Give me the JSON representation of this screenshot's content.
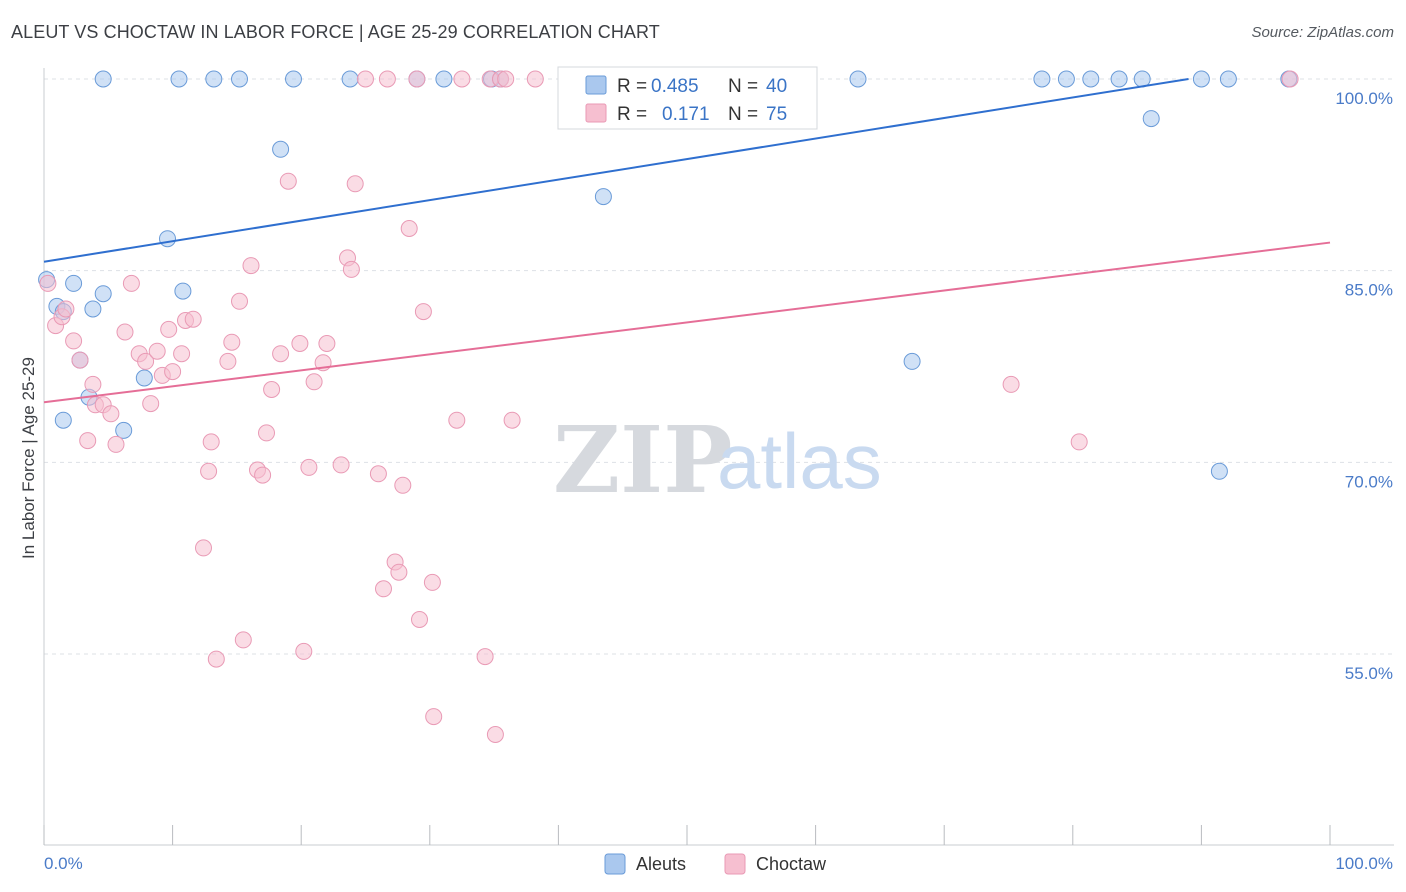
{
  "title": "ALEUT VS CHOCTAW IN LABOR FORCE | AGE 25-29 CORRELATION CHART",
  "source": "Source: ZipAtlas.com",
  "watermark": {
    "part1": "ZIP",
    "part2": "atlas"
  },
  "colors": {
    "aleut_fill": "#aac8ee",
    "aleut_stroke": "#6a9bd8",
    "aleut_line": "#2f6fcf",
    "choctaw_fill": "#f6bfd0",
    "choctaw_stroke": "#e99ab5",
    "choctaw_line": "#e56e97",
    "tick_label": "#4a7bc8",
    "grid": "#dde1e6"
  },
  "legend": {
    "rows": [
      {
        "r_label": "R =",
        "r_value": "0.485",
        "n_label": "N =",
        "n_value": "40"
      },
      {
        "r_label": "R =",
        "r_value": "0.171",
        "n_label": "N =",
        "n_value": "75"
      }
    ]
  },
  "bottom_legend": [
    "Aleuts",
    "Choctaw"
  ],
  "chart_data": {
    "type": "scatter",
    "title": "ALEUT VS CHOCTAW IN LABOR FORCE | AGE 25-29 CORRELATION CHART",
    "xlabel": "",
    "ylabel": "In Labor Force | Age 25-29",
    "xlim": [
      0,
      100
    ],
    "ylim": [
      40,
      101.5
    ],
    "x_tick_labels": [
      "0.0%",
      "100.0%"
    ],
    "y_ticks": [
      55,
      70,
      85,
      100
    ],
    "y_tick_labels": [
      "55.0%",
      "70.0%",
      "85.0%",
      "100.0%"
    ],
    "grid": true,
    "legend_position": "top-center",
    "series": [
      {
        "name": "Aleuts",
        "R": 0.485,
        "N": 40,
        "trend": {
          "x": [
            0,
            89
          ],
          "y": [
            85.7,
            100.0
          ]
        },
        "points": [
          [
            0.2,
            84.3
          ],
          [
            1.0,
            82.2
          ],
          [
            1.5,
            81.8
          ],
          [
            1.5,
            73.3
          ],
          [
            2.3,
            84.0
          ],
          [
            2.8,
            78.0
          ],
          [
            3.5,
            75.1
          ],
          [
            3.8,
            82.0
          ],
          [
            4.6,
            83.2
          ],
          [
            4.6,
            100
          ],
          [
            6.2,
            72.5
          ],
          [
            7.8,
            76.6
          ],
          [
            9.6,
            87.5
          ],
          [
            10.5,
            100
          ],
          [
            10.8,
            83.4
          ],
          [
            13.2,
            100
          ],
          [
            15.2,
            100
          ],
          [
            18.4,
            94.5
          ],
          [
            19.4,
            100
          ],
          [
            23.8,
            100
          ],
          [
            29.0,
            100
          ],
          [
            31.1,
            100
          ],
          [
            34.8,
            100
          ],
          [
            35.5,
            100
          ],
          [
            43.5,
            90.8
          ],
          [
            52.3,
            100
          ],
          [
            52.7,
            100
          ],
          [
            52.8,
            100
          ],
          [
            63.3,
            100
          ],
          [
            67.5,
            77.9
          ],
          [
            77.6,
            100
          ],
          [
            79.5,
            100
          ],
          [
            81.4,
            100
          ],
          [
            83.6,
            100
          ],
          [
            85.4,
            100
          ],
          [
            86.1,
            96.9
          ],
          [
            90.0,
            100
          ],
          [
            91.4,
            69.3
          ],
          [
            92.1,
            100
          ],
          [
            96.8,
            100
          ]
        ]
      },
      {
        "name": "Choctaw",
        "R": 0.171,
        "N": 75,
        "trend": {
          "x": [
            0,
            100
          ],
          "y": [
            74.7,
            87.2
          ]
        },
        "points": [
          [
            0.3,
            84.0
          ],
          [
            0.9,
            80.7
          ],
          [
            1.4,
            81.4
          ],
          [
            1.7,
            82.0
          ],
          [
            2.3,
            79.5
          ],
          [
            2.8,
            78.0
          ],
          [
            3.4,
            71.7
          ],
          [
            3.8,
            76.1
          ],
          [
            4.0,
            74.5
          ],
          [
            4.6,
            74.5
          ],
          [
            5.2,
            73.8
          ],
          [
            5.6,
            71.4
          ],
          [
            6.3,
            80.2
          ],
          [
            6.8,
            84.0
          ],
          [
            7.4,
            78.5
          ],
          [
            7.9,
            77.9
          ],
          [
            8.3,
            74.6
          ],
          [
            8.8,
            78.7
          ],
          [
            9.2,
            76.8
          ],
          [
            9.7,
            80.4
          ],
          [
            10.0,
            77.1
          ],
          [
            10.7,
            78.5
          ],
          [
            11.0,
            81.1
          ],
          [
            11.6,
            81.2
          ],
          [
            12.4,
            63.3
          ],
          [
            12.8,
            69.3
          ],
          [
            13.0,
            71.6
          ],
          [
            13.4,
            54.6
          ],
          [
            14.3,
            77.9
          ],
          [
            14.6,
            79.4
          ],
          [
            15.2,
            82.6
          ],
          [
            15.5,
            56.1
          ],
          [
            16.1,
            85.4
          ],
          [
            16.6,
            69.4
          ],
          [
            17.0,
            69.0
          ],
          [
            17.3,
            72.3
          ],
          [
            17.7,
            75.7
          ],
          [
            18.4,
            78.5
          ],
          [
            19.0,
            92.0
          ],
          [
            19.9,
            79.3
          ],
          [
            20.2,
            55.2
          ],
          [
            20.6,
            69.6
          ],
          [
            21.0,
            76.3
          ],
          [
            21.7,
            77.8
          ],
          [
            22.0,
            79.3
          ],
          [
            23.1,
            69.8
          ],
          [
            23.6,
            86.0
          ],
          [
            23.9,
            85.1
          ],
          [
            24.2,
            91.8
          ],
          [
            25.0,
            100
          ],
          [
            26.0,
            69.1
          ],
          [
            26.4,
            60.1
          ],
          [
            26.7,
            100
          ],
          [
            27.3,
            62.2
          ],
          [
            27.6,
            61.4
          ],
          [
            27.9,
            68.2
          ],
          [
            28.4,
            88.3
          ],
          [
            29.0,
            100
          ],
          [
            29.2,
            57.7
          ],
          [
            29.5,
            81.8
          ],
          [
            30.2,
            60.6
          ],
          [
            30.3,
            50.1
          ],
          [
            32.1,
            73.3
          ],
          [
            32.5,
            100
          ],
          [
            34.3,
            54.8
          ],
          [
            34.7,
            100
          ],
          [
            35.5,
            100
          ],
          [
            35.9,
            100
          ],
          [
            35.1,
            48.7
          ],
          [
            36.4,
            73.3
          ],
          [
            38.2,
            100
          ],
          [
            75.2,
            76.1
          ],
          [
            80.5,
            71.6
          ],
          [
            96.9,
            100
          ],
          [
            45.0,
            100
          ]
        ]
      }
    ]
  }
}
